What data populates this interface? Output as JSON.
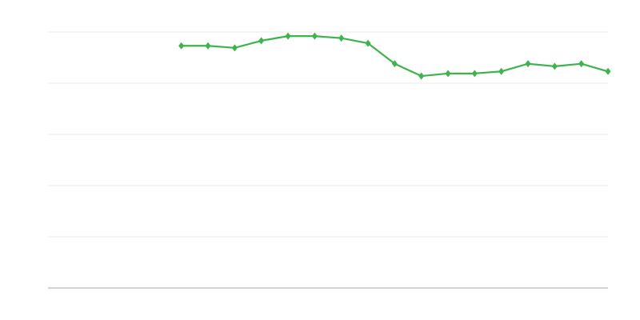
{
  "chart_data": {
    "type": "line",
    "title": "",
    "xlabel": "",
    "ylabel": "",
    "grid": true,
    "xlim": [
      0,
      21
    ],
    "ylim": [
      0,
      5
    ],
    "y_gridlines": [
      1,
      2,
      3,
      4,
      5
    ],
    "series": [
      {
        "color": "#3cb44b",
        "marker": "diamond",
        "x": [
          5,
          6,
          7,
          8,
          9,
          10,
          11,
          12,
          13,
          14,
          15,
          16,
          17,
          18,
          19,
          20,
          21
        ],
        "values": [
          4.73,
          4.73,
          4.69,
          4.83,
          4.92,
          4.92,
          4.88,
          4.78,
          4.38,
          4.14,
          4.19,
          4.19,
          4.23,
          4.38,
          4.33,
          4.38,
          4.23
        ]
      }
    ],
    "colors": {
      "grid": "#ebebeb",
      "axis": "#aaaaaa"
    }
  }
}
